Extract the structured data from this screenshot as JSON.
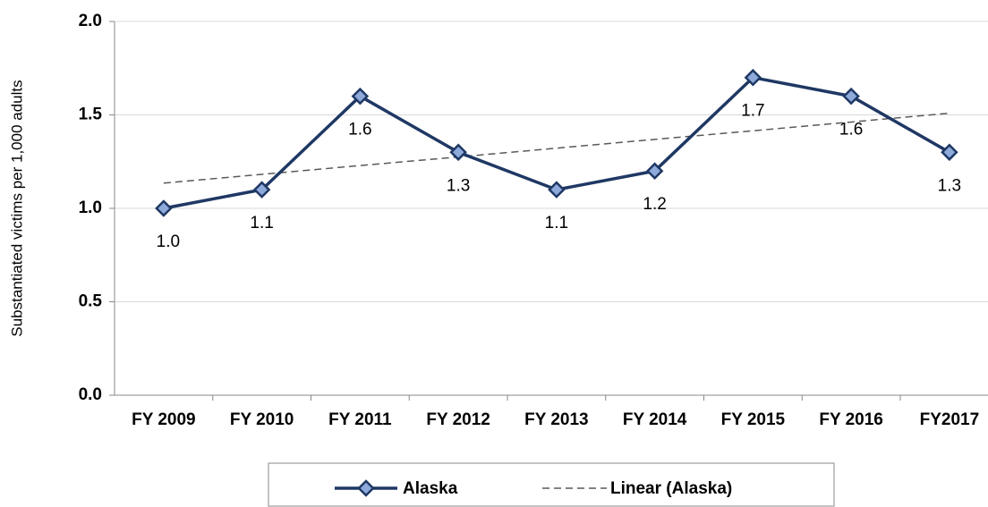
{
  "chart_data": {
    "type": "line",
    "y_label": "Substantiated victims per 1,000 adults",
    "categories": [
      "FY 2009",
      "FY 2010",
      "FY 2011",
      "FY 2012",
      "FY 2013",
      "FY 2014",
      "FY 2015",
      "FY 2016",
      "FY2017"
    ],
    "series": [
      {
        "name": "Alaska",
        "color": "#1f3864",
        "marker_color": "#8eaadb",
        "values": [
          1.0,
          1.1,
          1.6,
          1.3,
          1.1,
          1.2,
          1.7,
          1.6,
          1.3
        ],
        "value_labels": [
          "1.0",
          "1.1",
          "1.6",
          "1.3",
          "1.1",
          "1.2",
          "1.7",
          "1.6",
          "1.3"
        ]
      },
      {
        "name": "Linear (Alaska)",
        "color": "#595959",
        "dashed": true,
        "values": [
          1.135,
          1.182,
          1.229,
          1.275,
          1.322,
          1.369,
          1.415,
          1.462,
          1.509
        ]
      }
    ],
    "ylim": [
      0,
      2
    ],
    "yticks": [
      {
        "value": 0,
        "label": "0.0"
      },
      {
        "value": 0.5,
        "label": "0.5"
      },
      {
        "value": 1,
        "label": "1.0"
      },
      {
        "value": 1.5,
        "label": "1.5"
      },
      {
        "value": 2,
        "label": "2.0"
      }
    ],
    "grid": true,
    "legend": "bottom"
  }
}
